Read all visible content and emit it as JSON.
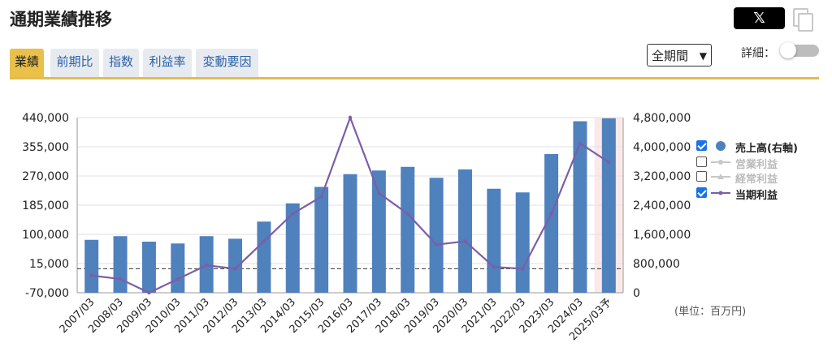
{
  "header": {
    "title": "通期業績推移",
    "x_label": "𝕏"
  },
  "tabs": [
    {
      "label": "業績",
      "active": true
    },
    {
      "label": "前期比",
      "active": false
    },
    {
      "label": "指数",
      "active": false
    },
    {
      "label": "利益率",
      "active": false
    },
    {
      "label": "変動要因",
      "active": false
    }
  ],
  "controls": {
    "period_label": "全期間",
    "detail_label": "詳細："
  },
  "legend": [
    {
      "label": "売上高(右軸)",
      "checked": true,
      "color": "#4f81bd",
      "kind": "bar"
    },
    {
      "label": "営業利益",
      "checked": false,
      "color": "#c8c8c8",
      "kind": "line"
    },
    {
      "label": "経常利益",
      "checked": false,
      "color": "#c8c8c8",
      "kind": "line"
    },
    {
      "label": "当期利益",
      "checked": true,
      "color": "#7b5ea7",
      "kind": "line"
    }
  ],
  "unit_label": "(単位：百万円)",
  "chart_data": {
    "type": "bar",
    "categories": [
      "2007/03",
      "2008/03",
      "2009/03",
      "2010/03",
      "2011/03",
      "2012/03",
      "2013/03",
      "2014/03",
      "2015/03",
      "2016/03",
      "2017/03",
      "2018/03",
      "2019/03",
      "2020/03",
      "2021/03",
      "2022/03",
      "2023/03",
      "2024/03",
      "2025/03予"
    ],
    "series": [
      {
        "name": "売上高(右軸)",
        "type": "bar",
        "axis": "right",
        "color": "#4f81bd",
        "values": [
          1450000,
          1550000,
          1400000,
          1350000,
          1550000,
          1480000,
          1950000,
          2450000,
          2900000,
          3250000,
          3350000,
          3450000,
          3150000,
          3380000,
          2850000,
          2750000,
          3800000,
          4700000,
          4780000
        ]
      },
      {
        "name": "当期利益",
        "type": "line",
        "axis": "left",
        "color": "#7b5ea7",
        "values": [
          -20000,
          -30000,
          -70000,
          -30000,
          10000,
          0,
          80000,
          160000,
          210000,
          440000,
          220000,
          160000,
          70000,
          80000,
          5000,
          0,
          160000,
          365000,
          310000
        ]
      }
    ],
    "left_axis": {
      "min": -70000,
      "max": 440000,
      "ticks": [
        "440,000",
        "355,000",
        "270,000",
        "185,000",
        "100,000",
        "15,000",
        "-70,000"
      ],
      "tick_values": [
        440000,
        355000,
        270000,
        185000,
        100000,
        15000,
        -70000
      ]
    },
    "right_axis": {
      "min": 0,
      "max": 4800000,
      "ticks": [
        "4,800,000",
        "4,000,000",
        "3,200,000",
        "2,400,000",
        "1,600,000",
        "800,000",
        "0"
      ],
      "tick_values": [
        4800000,
        4000000,
        3200000,
        2400000,
        1600000,
        800000,
        0
      ]
    },
    "zero_line_value": 0,
    "forecast_index": 18,
    "grid": true,
    "legend_position": "right"
  }
}
